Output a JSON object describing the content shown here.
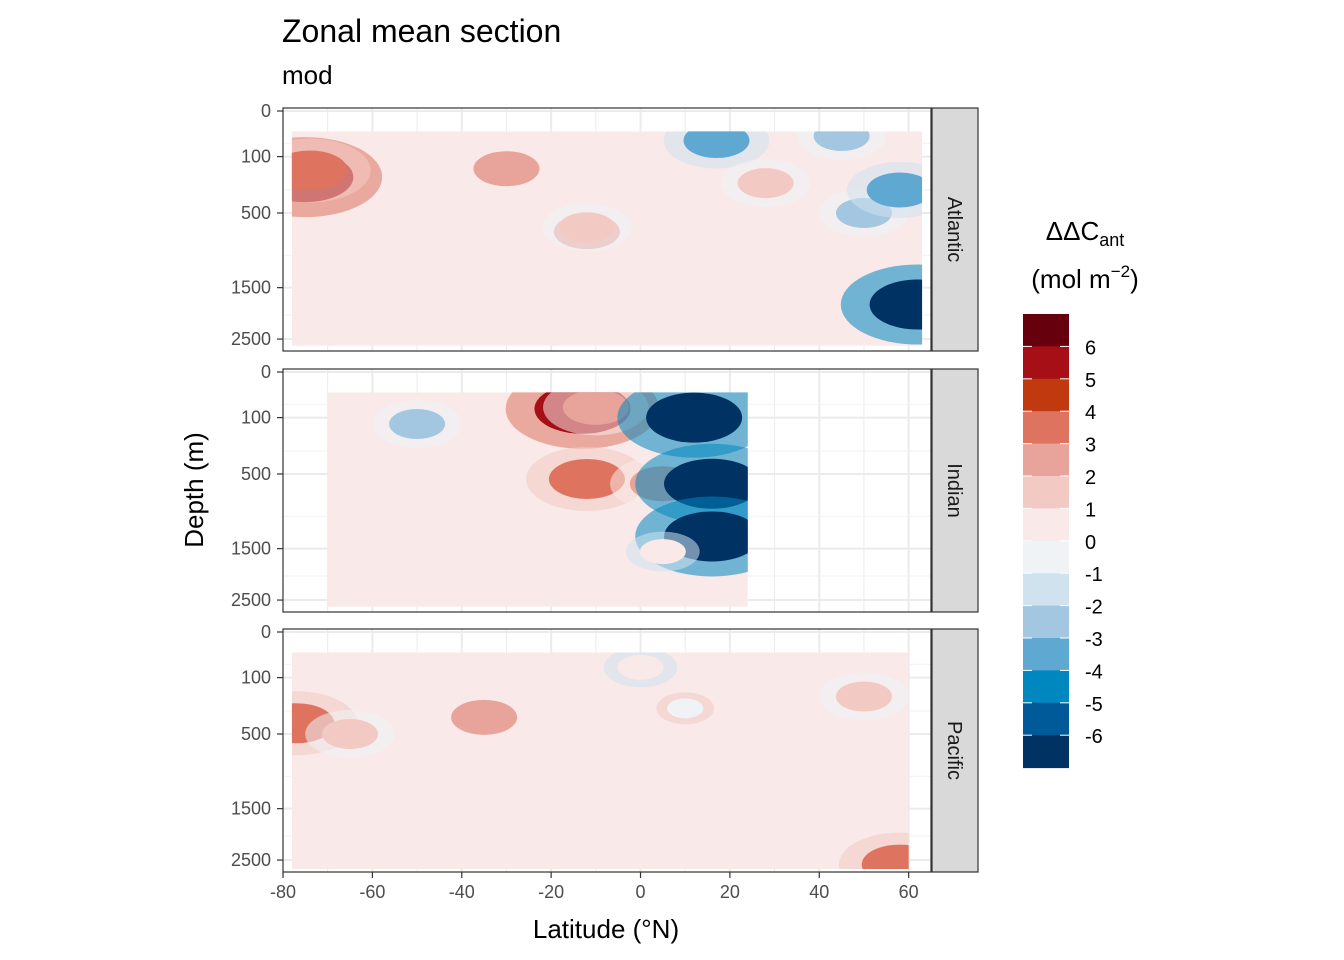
{
  "chart_data": {
    "type": "heatmap",
    "title": "Zonal mean section",
    "subtitle": "mod",
    "xlabel": "Latitude (°N)",
    "ylabel": "Depth (m)",
    "xlim": [
      -80,
      65
    ],
    "x_ticks": [
      -80,
      -60,
      -40,
      -20,
      0,
      20,
      40,
      60
    ],
    "y_ticks": [
      0,
      100,
      500,
      1500,
      2500
    ],
    "y_reversed": true,
    "grid": true,
    "legend": {
      "title_main": "ΔΔC",
      "title_sub": "ant",
      "title_unit": "(mol m",
      "title_exp": "−2",
      "title_close": ")",
      "placement": "right",
      "labels": [
        "6",
        "5",
        "4",
        "3",
        "2",
        "1",
        "0",
        "-1",
        "-2",
        "-3",
        "-4",
        "-5",
        "-6"
      ],
      "colors": [
        "#67000d",
        "#a50f15",
        "#c13a0f",
        "#de7460",
        "#e8a49a",
        "#f3cac3",
        "#f9e9e8",
        "#eff3f6",
        "#d1e2ef",
        "#a3c7e0",
        "#5fa8d1",
        "#0087bf",
        "#005a99",
        "#003264"
      ]
    },
    "panels": [
      {
        "name": "Atlantic",
        "lat_range": [
          -78,
          63
        ],
        "depth_max": 2650,
        "features": [
          {
            "lat": -75,
            "depth": 210,
            "value": 6
          },
          {
            "lat": -74,
            "depth": 170,
            "value": 4
          },
          {
            "lat": -30,
            "depth": 160,
            "value": 3
          },
          {
            "lat": -12,
            "depth": 700,
            "value": 3
          },
          {
            "lat": -12,
            "depth": 650,
            "value": 2
          },
          {
            "lat": 17,
            "depth": 42,
            "value": -3
          },
          {
            "lat": 45,
            "depth": 30,
            "value": -2
          },
          {
            "lat": 28,
            "depth": 250,
            "value": 2
          },
          {
            "lat": 50,
            "depth": 500,
            "value": -2
          },
          {
            "lat": 58,
            "depth": 300,
            "value": -3
          },
          {
            "lat": 62,
            "depth": 1800,
            "value": -6
          }
        ]
      },
      {
        "name": "Indian",
        "lat_range": [
          -70,
          24
        ],
        "depth_max": 2650,
        "features": [
          {
            "lat": -13,
            "depth": 65,
            "value": 6
          },
          {
            "lat": -10,
            "depth": 60,
            "value": 3
          },
          {
            "lat": -50,
            "depth": 130,
            "value": -2
          },
          {
            "lat": 12,
            "depth": 100,
            "value": -6
          },
          {
            "lat": -12,
            "depth": 550,
            "value": 4
          },
          {
            "lat": 5,
            "depth": 600,
            "value": 3
          },
          {
            "lat": 16,
            "depth": 600,
            "value": -6
          },
          {
            "lat": 16,
            "depth": 1300,
            "value": -6
          },
          {
            "lat": 5,
            "depth": 1550,
            "value": 1
          }
        ]
      },
      {
        "name": "Pacific",
        "lat_range": [
          -78,
          60
        ],
        "depth_max": 2700,
        "features": [
          {
            "lat": -77,
            "depth": 400,
            "value": 4
          },
          {
            "lat": -65,
            "depth": 500,
            "value": 2
          },
          {
            "lat": -35,
            "depth": 350,
            "value": 3
          },
          {
            "lat": 0,
            "depth": 60,
            "value": 1
          },
          {
            "lat": 10,
            "depth": 280,
            "value": 0
          },
          {
            "lat": 50,
            "depth": 200,
            "value": 2
          },
          {
            "lat": 58,
            "depth": 2600,
            "value": 4
          }
        ]
      }
    ]
  }
}
